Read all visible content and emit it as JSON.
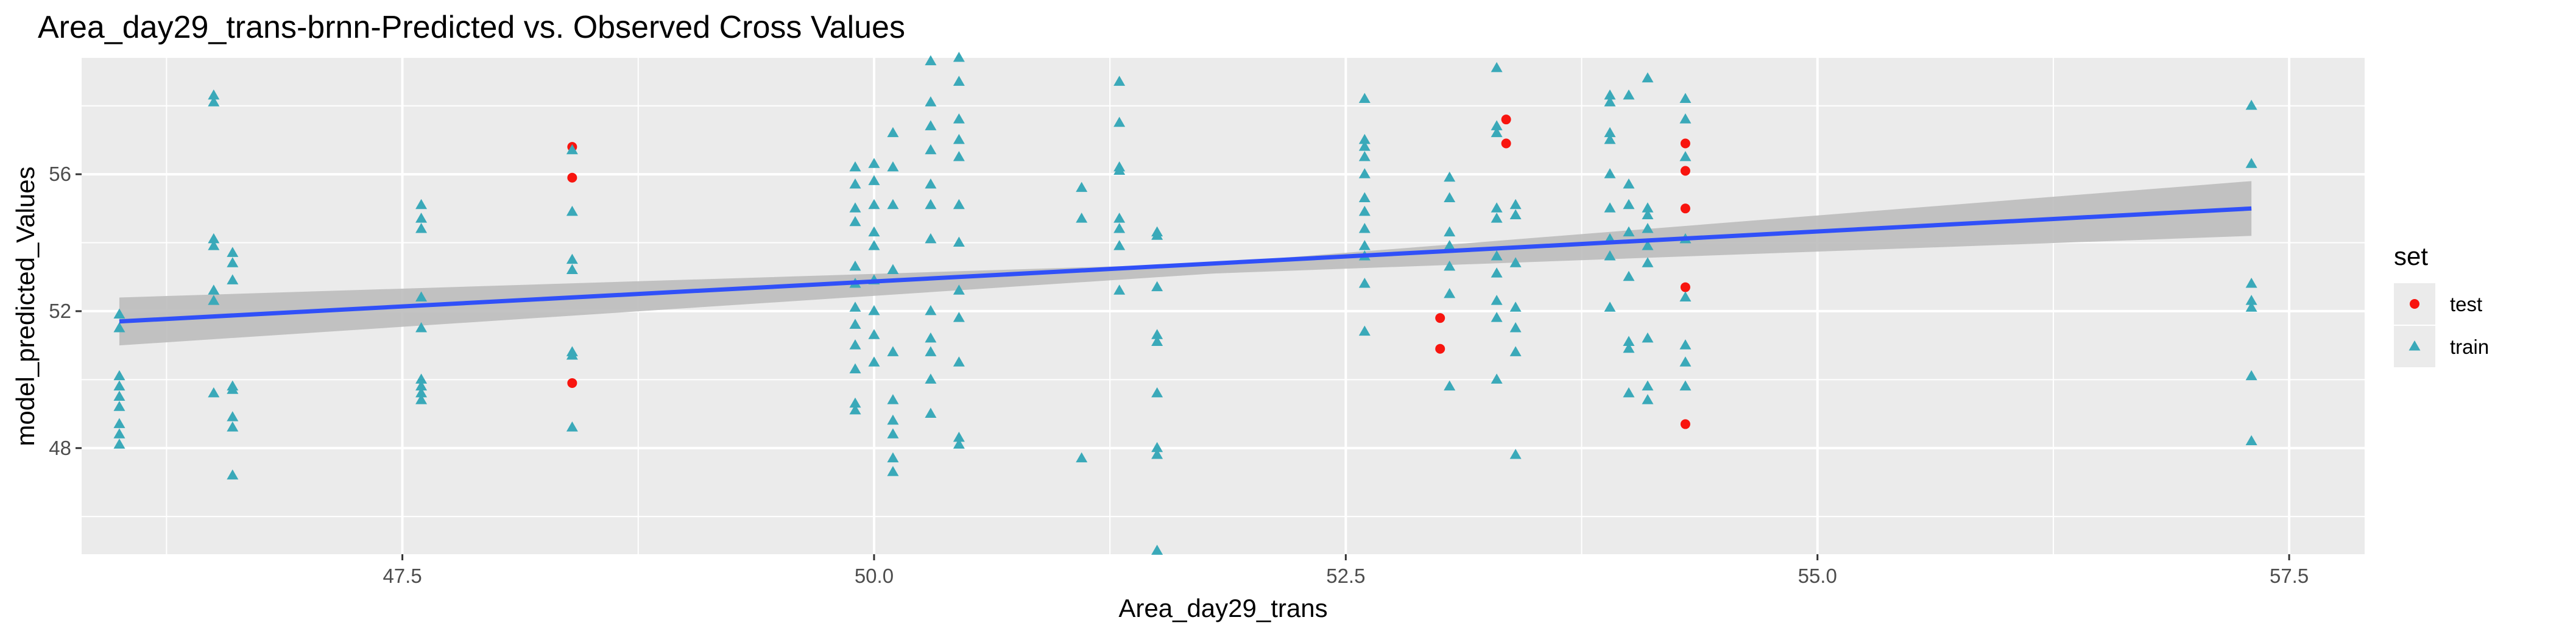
{
  "chart_data": {
    "type": "scatter",
    "title": "Area_day29_trans-brnn-Predicted vs. Observed Cross Values",
    "xlabel": "Area_day29_trans",
    "ylabel": "model_predicted_Values",
    "xlim": [
      45.8,
      57.9
    ],
    "ylim": [
      44.9,
      59.4
    ],
    "x_ticks": [
      47.5,
      50.0,
      52.5,
      55.0,
      57.5
    ],
    "x_tick_labels": [
      "47.5",
      "50.0",
      "52.5",
      "55.0",
      "57.5"
    ],
    "y_ticks": [
      48,
      52,
      56
    ],
    "y_tick_labels": [
      "48",
      "52",
      "56"
    ],
    "grid": true,
    "background": "#ebebeb",
    "legend": {
      "title": "set",
      "position": "right",
      "entries": [
        {
          "label": "test",
          "shape": "circle",
          "color": "#f8150f"
        },
        {
          "label": "train",
          "shape": "triangle",
          "color": "#3aa9b9"
        }
      ]
    },
    "series": [
      {
        "name": "test",
        "shape": "circle",
        "color": "#f8150f",
        "points": [
          [
            48.4,
            56.8
          ],
          [
            48.4,
            55.9
          ],
          [
            48.4,
            49.9
          ],
          [
            53.0,
            51.8
          ],
          [
            53.0,
            50.9
          ],
          [
            53.35,
            57.6
          ],
          [
            53.35,
            56.9
          ],
          [
            54.3,
            56.9
          ],
          [
            54.3,
            56.1
          ],
          [
            54.3,
            55.0
          ],
          [
            54.3,
            52.7
          ],
          [
            54.3,
            48.7
          ]
        ]
      },
      {
        "name": "train",
        "shape": "triangle",
        "color": "#3aa9b9",
        "points": [
          [
            46.0,
            51.9
          ],
          [
            46.0,
            51.5
          ],
          [
            46.0,
            50.1
          ],
          [
            46.0,
            49.8
          ],
          [
            46.0,
            49.5
          ],
          [
            46.0,
            49.2
          ],
          [
            46.0,
            48.7
          ],
          [
            46.0,
            48.4
          ],
          [
            46.0,
            48.1
          ],
          [
            46.5,
            58.3
          ],
          [
            46.5,
            58.1
          ],
          [
            46.5,
            54.1
          ],
          [
            46.5,
            53.9
          ],
          [
            46.5,
            52.6
          ],
          [
            46.5,
            52.3
          ],
          [
            46.5,
            49.6
          ],
          [
            46.6,
            53.7
          ],
          [
            46.6,
            53.4
          ],
          [
            46.6,
            52.9
          ],
          [
            46.6,
            49.8
          ],
          [
            46.6,
            49.7
          ],
          [
            46.6,
            48.9
          ],
          [
            46.6,
            48.6
          ],
          [
            46.6,
            47.2
          ],
          [
            47.6,
            55.1
          ],
          [
            47.6,
            54.7
          ],
          [
            47.6,
            54.4
          ],
          [
            47.6,
            52.4
          ],
          [
            47.6,
            51.5
          ],
          [
            47.6,
            50.0
          ],
          [
            47.6,
            49.8
          ],
          [
            47.6,
            49.6
          ],
          [
            47.6,
            49.4
          ],
          [
            48.4,
            56.7
          ],
          [
            48.4,
            54.9
          ],
          [
            48.4,
            53.5
          ],
          [
            48.4,
            53.2
          ],
          [
            48.4,
            50.8
          ],
          [
            48.4,
            50.7
          ],
          [
            48.4,
            48.6
          ],
          [
            49.9,
            55.7
          ],
          [
            49.9,
            56.2
          ],
          [
            49.9,
            55.0
          ],
          [
            49.9,
            54.6
          ],
          [
            49.9,
            53.3
          ],
          [
            49.9,
            52.8
          ],
          [
            49.9,
            52.1
          ],
          [
            49.9,
            51.6
          ],
          [
            49.9,
            51.0
          ],
          [
            49.9,
            50.3
          ],
          [
            49.9,
            49.3
          ],
          [
            49.9,
            49.1
          ],
          [
            50.0,
            56.3
          ],
          [
            50.0,
            55.8
          ],
          [
            50.0,
            55.1
          ],
          [
            50.0,
            54.3
          ],
          [
            50.0,
            53.9
          ],
          [
            50.0,
            52.9
          ],
          [
            50.0,
            52.0
          ],
          [
            50.0,
            51.3
          ],
          [
            50.0,
            50.5
          ],
          [
            50.1,
            57.2
          ],
          [
            50.1,
            56.2
          ],
          [
            50.1,
            55.1
          ],
          [
            50.1,
            53.2
          ],
          [
            50.1,
            50.8
          ],
          [
            50.1,
            49.4
          ],
          [
            50.1,
            48.8
          ],
          [
            50.1,
            48.4
          ],
          [
            50.1,
            47.7
          ],
          [
            50.1,
            47.3
          ],
          [
            50.3,
            59.3
          ],
          [
            50.3,
            58.1
          ],
          [
            50.3,
            57.4
          ],
          [
            50.3,
            56.7
          ],
          [
            50.3,
            55.7
          ],
          [
            50.3,
            55.1
          ],
          [
            50.3,
            54.1
          ],
          [
            50.3,
            52.0
          ],
          [
            50.3,
            51.2
          ],
          [
            50.3,
            50.8
          ],
          [
            50.3,
            50.0
          ],
          [
            50.3,
            49.0
          ],
          [
            50.45,
            59.4
          ],
          [
            50.45,
            58.7
          ],
          [
            50.45,
            57.6
          ],
          [
            50.45,
            57.0
          ],
          [
            50.45,
            56.5
          ],
          [
            50.45,
            55.1
          ],
          [
            50.45,
            54.0
          ],
          [
            50.45,
            52.6
          ],
          [
            50.45,
            51.8
          ],
          [
            50.45,
            50.5
          ],
          [
            50.45,
            48.3
          ],
          [
            50.45,
            48.1
          ],
          [
            51.1,
            55.6
          ],
          [
            51.1,
            54.7
          ],
          [
            51.1,
            47.7
          ],
          [
            51.3,
            58.7
          ],
          [
            51.3,
            57.5
          ],
          [
            51.3,
            56.2
          ],
          [
            51.3,
            56.1
          ],
          [
            51.3,
            54.7
          ],
          [
            51.3,
            54.4
          ],
          [
            51.3,
            53.9
          ],
          [
            51.3,
            52.6
          ],
          [
            51.5,
            54.3
          ],
          [
            51.5,
            54.2
          ],
          [
            51.5,
            52.7
          ],
          [
            51.5,
            51.3
          ],
          [
            51.5,
            51.1
          ],
          [
            51.5,
            49.6
          ],
          [
            51.5,
            48.0
          ],
          [
            51.5,
            47.8
          ],
          [
            51.5,
            45.0
          ],
          [
            52.6,
            58.2
          ],
          [
            52.6,
            57.0
          ],
          [
            52.6,
            56.8
          ],
          [
            52.6,
            56.5
          ],
          [
            52.6,
            56.0
          ],
          [
            52.6,
            55.3
          ],
          [
            52.6,
            54.9
          ],
          [
            52.6,
            54.4
          ],
          [
            52.6,
            53.9
          ],
          [
            52.6,
            53.6
          ],
          [
            52.6,
            52.8
          ],
          [
            52.6,
            51.4
          ],
          [
            53.05,
            55.9
          ],
          [
            53.05,
            55.3
          ],
          [
            53.05,
            54.3
          ],
          [
            53.05,
            53.9
          ],
          [
            53.05,
            53.3
          ],
          [
            53.05,
            52.5
          ],
          [
            53.05,
            49.8
          ],
          [
            53.3,
            59.1
          ],
          [
            53.3,
            57.2
          ],
          [
            53.3,
            57.4
          ],
          [
            53.3,
            55.0
          ],
          [
            53.3,
            54.7
          ],
          [
            53.3,
            53.6
          ],
          [
            53.3,
            53.1
          ],
          [
            53.3,
            52.3
          ],
          [
            53.3,
            51.8
          ],
          [
            53.3,
            50.0
          ],
          [
            53.4,
            55.1
          ],
          [
            53.4,
            54.8
          ],
          [
            53.4,
            53.4
          ],
          [
            53.4,
            52.1
          ],
          [
            53.4,
            51.5
          ],
          [
            53.4,
            50.8
          ],
          [
            53.4,
            47.8
          ],
          [
            53.9,
            58.3
          ],
          [
            53.9,
            58.1
          ],
          [
            53.9,
            57.2
          ],
          [
            53.9,
            57.0
          ],
          [
            53.9,
            56.0
          ],
          [
            53.9,
            55.0
          ],
          [
            53.9,
            54.1
          ],
          [
            53.9,
            53.6
          ],
          [
            53.9,
            52.1
          ],
          [
            54.0,
            58.3
          ],
          [
            54.0,
            55.7
          ],
          [
            54.0,
            55.1
          ],
          [
            54.0,
            54.3
          ],
          [
            54.0,
            53.0
          ],
          [
            54.0,
            51.1
          ],
          [
            54.0,
            50.9
          ],
          [
            54.0,
            49.6
          ],
          [
            54.1,
            58.8
          ],
          [
            54.1,
            55.0
          ],
          [
            54.1,
            54.8
          ],
          [
            54.1,
            54.4
          ],
          [
            54.1,
            53.9
          ],
          [
            54.1,
            53.4
          ],
          [
            54.1,
            51.2
          ],
          [
            54.1,
            49.8
          ],
          [
            54.1,
            49.4
          ],
          [
            54.3,
            58.2
          ],
          [
            54.3,
            57.6
          ],
          [
            54.3,
            56.5
          ],
          [
            54.3,
            54.1
          ],
          [
            54.3,
            52.4
          ],
          [
            54.3,
            51.0
          ],
          [
            54.3,
            50.5
          ],
          [
            54.3,
            49.8
          ],
          [
            57.3,
            58.0
          ],
          [
            57.3,
            56.3
          ],
          [
            57.3,
            52.8
          ],
          [
            57.3,
            52.3
          ],
          [
            57.3,
            52.1
          ],
          [
            57.3,
            50.1
          ],
          [
            57.3,
            48.2
          ]
        ]
      }
    ],
    "smooth": {
      "method": "linear",
      "color": "#3050f8",
      "band_color": "#bdbdbd",
      "line": [
        [
          46.0,
          51.7
        ],
        [
          57.3,
          55.0
        ]
      ],
      "band_lower": [
        [
          46.0,
          51.0
        ],
        [
          51.8,
          53.1
        ],
        [
          57.3,
          54.2
        ]
      ],
      "band_upper": [
        [
          46.0,
          52.4
        ],
        [
          51.8,
          53.4
        ],
        [
          57.3,
          55.8
        ]
      ]
    }
  }
}
